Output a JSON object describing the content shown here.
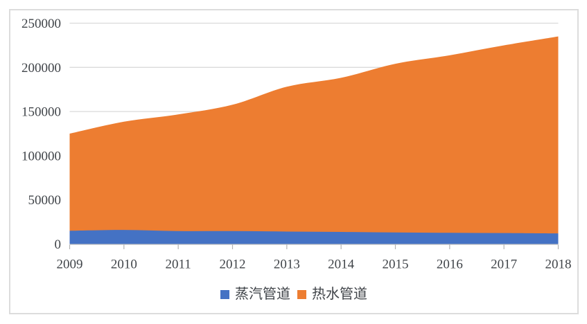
{
  "chart_data": {
    "type": "area",
    "stacked": true,
    "smooth": true,
    "title": "",
    "xlabel": "",
    "ylabel": "",
    "categories": [
      "2009",
      "2010",
      "2011",
      "2012",
      "2013",
      "2014",
      "2015",
      "2016",
      "2017",
      "2018"
    ],
    "series": [
      {
        "name": "蒸汽管道",
        "color": "#4472C4",
        "values": [
          15000,
          16000,
          14700,
          14700,
          14100,
          13700,
          13100,
          12700,
          12400,
          12000
        ]
      },
      {
        "name": "热水管道",
        "color": "#ED7D31",
        "values": [
          110000,
          122500,
          132000,
          143000,
          164000,
          174500,
          191000,
          201000,
          212500,
          223000
        ]
      }
    ],
    "stacked_totals": [
      125000,
      138500,
      146700,
      157700,
      178100,
      188200,
      204100,
      213700,
      224900,
      235000
    ],
    "ylim": [
      0,
      250000
    ],
    "yticks": [
      0,
      50000,
      100000,
      150000,
      200000,
      250000
    ],
    "ytick_labels": [
      "0",
      "50000",
      "100000",
      "150000",
      "200000",
      "250000"
    ],
    "grid": true,
    "legend_position": "bottom"
  },
  "styles": {
    "background": "#ffffff",
    "frame_border_color": "#dcdcdc",
    "grid_color": "#dadada",
    "axis_color": "#c0c0c0",
    "tick_color": "#b3b3b3",
    "text_color": "#404449"
  }
}
